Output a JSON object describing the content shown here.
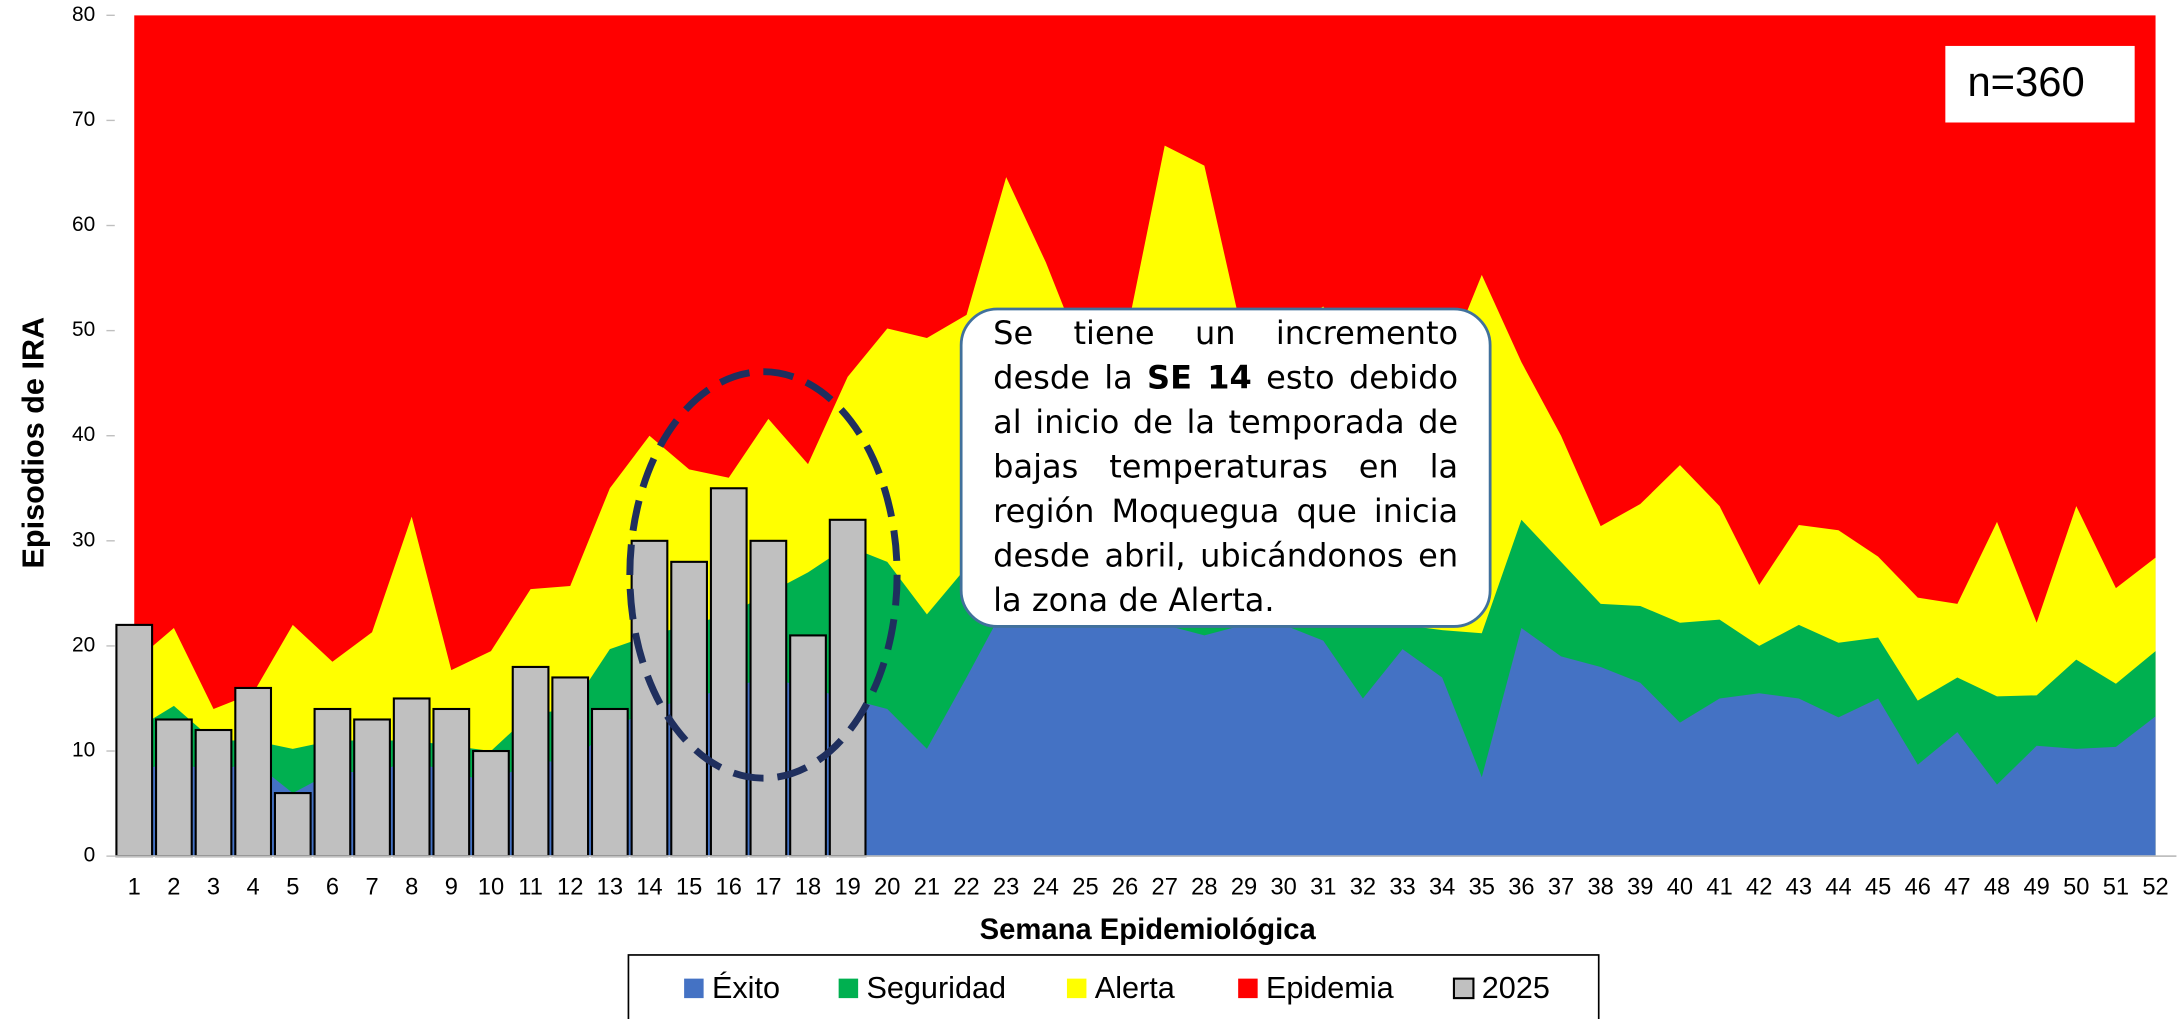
{
  "chart_data": {
    "type": "area",
    "categories": [
      "1",
      "2",
      "3",
      "4",
      "5",
      "6",
      "7",
      "8",
      "9",
      "10",
      "11",
      "12",
      "13",
      "14",
      "15",
      "16",
      "17",
      "18",
      "19",
      "20",
      "21",
      "22",
      "23",
      "24",
      "25",
      "26",
      "27",
      "28",
      "29",
      "30",
      "31",
      "32",
      "33",
      "34",
      "35",
      "36",
      "37",
      "38",
      "39",
      "40",
      "41",
      "42",
      "43",
      "44",
      "45",
      "46",
      "47",
      "48",
      "49",
      "50",
      "51",
      "52"
    ],
    "series": [
      {
        "name": "Éxito",
        "type": "area",
        "color": "#4472c4",
        "values": [
          8,
          9,
          8,
          9,
          6,
          8,
          8,
          9,
          8,
          7,
          9,
          9,
          12,
          14,
          15,
          16,
          17,
          16,
          15,
          14,
          10.2,
          17,
          24,
          24,
          23,
          22,
          22,
          21,
          22,
          22,
          20.5,
          15,
          19.7,
          17,
          7.5,
          21.7,
          19,
          18,
          16.5,
          12.7,
          15,
          15.5,
          15,
          13.2,
          15,
          8.7,
          11.8,
          6.8,
          10.5,
          10.2,
          10.4,
          13.3
        ]
      },
      {
        "name": "Seguridad",
        "type": "area",
        "color": "#00b050",
        "values": [
          12,
          14.3,
          11,
          11,
          10.2,
          11,
          11,
          11,
          10.5,
          10,
          13.5,
          14,
          19.7,
          21,
          22,
          23,
          25,
          27,
          29.5,
          28,
          23,
          27.5,
          30,
          30,
          29,
          28,
          28,
          27,
          26,
          24,
          23,
          22,
          22,
          21.5,
          21.2,
          32,
          28,
          24,
          23.8,
          22.2,
          22.5,
          20,
          22,
          20.3,
          20.8,
          14.8,
          17,
          15.2,
          15.3,
          18.7,
          16.4,
          19.5
        ]
      },
      {
        "name": "Alerta",
        "type": "area",
        "color": "#ffff00",
        "values": [
          18.5,
          21.7,
          14,
          15.5,
          22,
          18.5,
          21.3,
          32.3,
          17.7,
          19.5,
          25.4,
          25.7,
          35,
          40,
          36.8,
          36,
          41.6,
          37.3,
          45.6,
          50.2,
          49.3,
          51.5,
          64.6,
          56.5,
          47,
          49,
          67.6,
          65.7,
          49,
          50,
          52.3,
          47,
          44,
          46,
          55.3,
          47,
          40,
          31.4,
          33.5,
          37.2,
          33.3,
          25.8,
          31.5,
          31,
          28.5,
          24.6,
          24,
          31.8,
          22.2,
          33.3,
          25.5,
          28.4
        ]
      },
      {
        "name": "Epidemia",
        "type": "area",
        "color": "#ff0000",
        "values": [
          80,
          80,
          80,
          80,
          80,
          80,
          80,
          80,
          80,
          80,
          80,
          80,
          80,
          80,
          80,
          80,
          80,
          80,
          80,
          80,
          80,
          80,
          80,
          80,
          80,
          80,
          80,
          80,
          80,
          80,
          80,
          80,
          80,
          80,
          80,
          80,
          80,
          80,
          80,
          80,
          80,
          80,
          80,
          80,
          80,
          80,
          80,
          80,
          80,
          80,
          80,
          80
        ]
      },
      {
        "name": "2025",
        "type": "bar",
        "color": "#c0c0c0",
        "values": [
          22,
          13,
          12,
          16,
          6,
          14,
          13,
          15,
          14,
          10,
          18,
          17,
          14,
          30,
          28,
          35,
          30,
          21,
          32,
          null,
          null,
          null,
          null,
          null,
          null,
          null,
          null,
          null,
          null,
          null,
          null,
          null,
          null,
          null,
          null,
          null,
          null,
          null,
          null,
          null,
          null,
          null,
          null,
          null,
          null,
          null,
          null,
          null,
          null,
          null,
          null,
          null
        ]
      }
    ],
    "ylim": [
      0,
      80
    ],
    "yticks": [
      0,
      10,
      20,
      30,
      40,
      50,
      60,
      70,
      80
    ],
    "xlabel": "Semana Epidemiológica",
    "ylabel": "Episodios de IRA",
    "sample_note": "n=360",
    "annotation": [
      "Se tiene un incremento desde la",
      "SE 14",
      "esto debido al inicio de la temporada de bajas temperaturas en la región Moquegua que inicia desde abril, ubicándonos en la zona de Alerta."
    ],
    "legend": "bottom",
    "grid": false
  }
}
